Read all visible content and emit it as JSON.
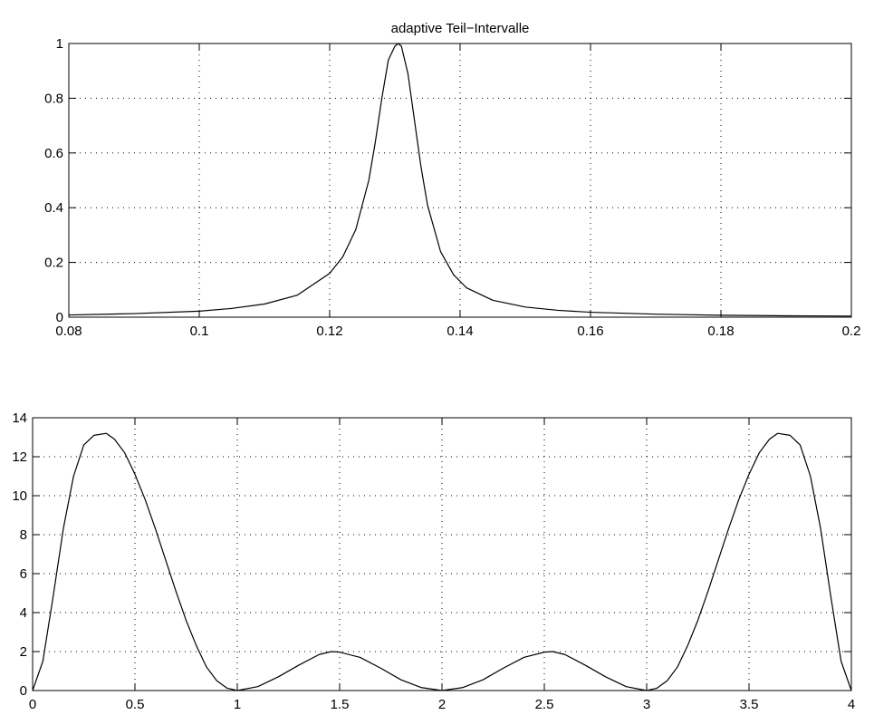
{
  "chart_data": [
    {
      "type": "line",
      "title": "adaptive Teil−Intervalle",
      "xlabel": "",
      "ylabel": "",
      "xlim": [
        0.08,
        0.2
      ],
      "ylim": [
        0,
        1
      ],
      "grid": true,
      "x_ticks": [
        "0.08",
        "0.1",
        "0.12",
        "0.14",
        "0.16",
        "0.18",
        "0.2"
      ],
      "x_tick_values": [
        0.08,
        0.1,
        0.12,
        0.14,
        0.16,
        0.18,
        0.2
      ],
      "y_ticks": [
        "0",
        "0.2",
        "0.4",
        "0.6",
        "0.8",
        "1"
      ],
      "y_tick_values": [
        0,
        0.2,
        0.4,
        0.6,
        0.8,
        1
      ],
      "series": [
        {
          "color": "#000000",
          "x": [
            0.08,
            0.09,
            0.1,
            0.105,
            0.11,
            0.115,
            0.12,
            0.122,
            0.124,
            0.126,
            0.127,
            0.128,
            0.129,
            0.13,
            0.1305,
            0.131,
            0.132,
            0.133,
            0.134,
            0.135,
            0.137,
            0.139,
            0.141,
            0.145,
            0.15,
            0.155,
            0.16,
            0.17,
            0.18,
            0.19,
            0.2
          ],
          "y": [
            0.008,
            0.013,
            0.022,
            0.032,
            0.048,
            0.08,
            0.16,
            0.22,
            0.32,
            0.5,
            0.64,
            0.8,
            0.94,
            0.99,
            1.0,
            0.99,
            0.89,
            0.72,
            0.55,
            0.41,
            0.24,
            0.155,
            0.107,
            0.062,
            0.037,
            0.025,
            0.018,
            0.011,
            0.007,
            0.005,
            0.004
          ]
        }
      ]
    },
    {
      "type": "line",
      "title": "",
      "xlabel": "",
      "ylabel": "",
      "xlim": [
        0,
        4
      ],
      "ylim": [
        0,
        14
      ],
      "grid": true,
      "x_ticks": [
        "0",
        "0.5",
        "1",
        "1.5",
        "2",
        "2.5",
        "3",
        "3.5",
        "4"
      ],
      "x_tick_values": [
        0,
        0.5,
        1,
        1.5,
        2,
        2.5,
        3,
        3.5,
        4
      ],
      "y_ticks": [
        "0",
        "2",
        "4",
        "6",
        "8",
        "10",
        "12",
        "14"
      ],
      "y_tick_values": [
        0,
        2,
        4,
        6,
        8,
        10,
        12,
        14
      ],
      "series": [
        {
          "color": "#000000",
          "x": [
            0,
            0.05,
            0.1,
            0.15,
            0.2,
            0.25,
            0.3,
            0.36,
            0.4,
            0.45,
            0.5,
            0.55,
            0.6,
            0.65,
            0.7,
            0.75,
            0.8,
            0.85,
            0.9,
            0.95,
            1.0,
            1.1,
            1.2,
            1.3,
            1.4,
            1.46,
            1.5,
            1.6,
            1.7,
            1.8,
            1.9,
            2.0,
            2.1,
            2.2,
            2.3,
            2.4,
            2.5,
            2.54,
            2.6,
            2.7,
            2.8,
            2.9,
            3.0,
            3.05,
            3.1,
            3.15,
            3.2,
            3.25,
            3.3,
            3.35,
            3.4,
            3.45,
            3.5,
            3.55,
            3.6,
            3.64,
            3.7,
            3.75,
            3.8,
            3.85,
            3.9,
            3.95,
            4.0
          ],
          "y": [
            0,
            1.5,
            4.8,
            8.3,
            11.0,
            12.6,
            13.1,
            13.2,
            12.9,
            12.2,
            11.1,
            9.8,
            8.3,
            6.7,
            5.1,
            3.6,
            2.3,
            1.2,
            0.5,
            0.12,
            0,
            0.2,
            0.7,
            1.3,
            1.85,
            2.0,
            1.97,
            1.7,
            1.15,
            0.55,
            0.15,
            0,
            0.15,
            0.55,
            1.15,
            1.7,
            1.97,
            2.0,
            1.85,
            1.3,
            0.7,
            0.2,
            0,
            0.12,
            0.5,
            1.2,
            2.3,
            3.6,
            5.1,
            6.7,
            8.3,
            9.8,
            11.1,
            12.2,
            12.9,
            13.2,
            13.1,
            12.6,
            11.0,
            8.3,
            4.8,
            1.5,
            0
          ]
        }
      ]
    }
  ]
}
